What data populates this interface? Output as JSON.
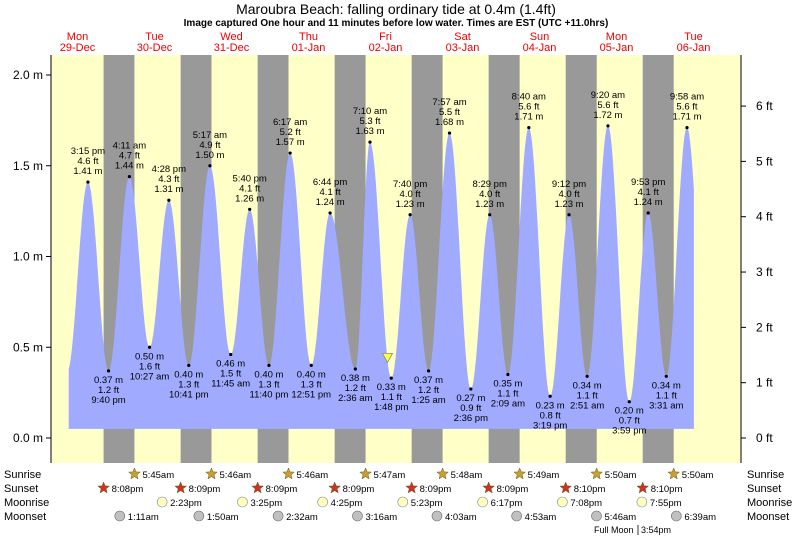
{
  "header": {
    "title": "Maroubra Beach: falling  ordinary tide at 0.4m (1.4ft)",
    "subtitle": "Image captured One hour and 11 minutes before low water. Times are EST (UTC +11.0hrs)"
  },
  "chart_data": {
    "type": "area",
    "ylim_m": [
      -0.1,
      2.12
    ],
    "y_ticks_m": [
      {
        "value": 0.0,
        "label": "0.0 m"
      },
      {
        "value": 0.5,
        "label": "0.5 m"
      },
      {
        "value": 1.0,
        "label": "1.0 m"
      },
      {
        "value": 1.5,
        "label": "1.5 m"
      },
      {
        "value": 2.0,
        "label": "2.0 m"
      }
    ],
    "y_ticks_ft": [
      {
        "value": 0,
        "label": "0 ft"
      },
      {
        "value": 1,
        "label": "1 ft"
      },
      {
        "value": 2,
        "label": "2 ft"
      },
      {
        "value": 3,
        "label": "3 ft"
      },
      {
        "value": 4,
        "label": "4 ft"
      },
      {
        "value": 5,
        "label": "5 ft"
      },
      {
        "value": 6,
        "label": "6 ft"
      }
    ],
    "days": [
      {
        "dow": "Mon",
        "date": "29-Dec"
      },
      {
        "dow": "Tue",
        "date": "30-Dec"
      },
      {
        "dow": "Wed",
        "date": "31-Dec"
      },
      {
        "dow": "Thu",
        "date": "01-Jan"
      },
      {
        "dow": "Fri",
        "date": "02-Jan"
      },
      {
        "dow": "Sat",
        "date": "03-Jan"
      },
      {
        "dow": "Sun",
        "date": "04-Jan"
      },
      {
        "dow": "Mon",
        "date": "05-Jan"
      },
      {
        "dow": "Tue",
        "date": "06-Jan"
      }
    ],
    "tides": [
      {
        "type": "high",
        "hours": 15.25,
        "time": "3:15 pm",
        "ft": "4.6 ft",
        "m": 1.41,
        "m_label": "1.41 m"
      },
      {
        "type": "low",
        "hours": 21.67,
        "time": "9:40 pm",
        "ft": "1.2 ft",
        "m": 0.37,
        "m_label": "0.37 m"
      },
      {
        "type": "high",
        "hours": 28.18,
        "time": "4:11 am",
        "ft": "4.7 ft",
        "m": 1.44,
        "m_label": "1.44 m"
      },
      {
        "type": "low",
        "hours": 34.45,
        "time": "10:27 am",
        "ft": "1.6 ft",
        "m": 0.5,
        "m_label": "0.50 m"
      },
      {
        "type": "high",
        "hours": 40.47,
        "time": "4:28 pm",
        "ft": "4.3 ft",
        "m": 1.31,
        "m_label": "1.31 m"
      },
      {
        "type": "low",
        "hours": 46.68,
        "time": "10:41 pm",
        "ft": "1.3 ft",
        "m": 0.4,
        "m_label": "0.40 m"
      },
      {
        "type": "high",
        "hours": 53.28,
        "time": "5:17 am",
        "ft": "4.9 ft",
        "m": 1.5,
        "m_label": "1.50 m"
      },
      {
        "type": "low",
        "hours": 59.75,
        "time": "11:45 am",
        "ft": "1.5 ft",
        "m": 0.46,
        "m_label": "0.46 m"
      },
      {
        "type": "high",
        "hours": 65.67,
        "time": "5:40 pm",
        "ft": "4.1 ft",
        "m": 1.26,
        "m_label": "1.26 m"
      },
      {
        "type": "low",
        "hours": 71.67,
        "time": "11:40 pm",
        "ft": "1.3 ft",
        "m": 0.4,
        "m_label": "0.40 m"
      },
      {
        "type": "high",
        "hours": 78.28,
        "time": "6:17 am",
        "ft": "5.2 ft",
        "m": 1.57,
        "m_label": "1.57 m"
      },
      {
        "type": "low",
        "hours": 84.85,
        "time": "12:51 pm",
        "ft": "1.3 ft",
        "m": 0.4,
        "m_label": "0.40 m"
      },
      {
        "type": "high",
        "hours": 90.73,
        "time": "6:44 pm",
        "ft": "4.1 ft",
        "m": 1.24,
        "m_label": "1.24 m"
      },
      {
        "type": "low",
        "hours": 98.6,
        "time": "2:36 am",
        "ft": "1.2 ft",
        "m": 0.38,
        "m_label": "0.38 m"
      },
      {
        "type": "high",
        "hours": 103.17,
        "time": "7:10 am",
        "ft": "5.3 ft",
        "m": 1.63,
        "m_label": "1.63 m"
      },
      {
        "type": "low",
        "hours": 109.8,
        "time": "1:48 pm",
        "ft": "1.1 ft",
        "m": 0.33,
        "m_label": "0.33 m"
      },
      {
        "type": "high",
        "hours": 115.67,
        "time": "7:40 pm",
        "ft": "4.0 ft",
        "m": 1.23,
        "m_label": "1.23 m"
      },
      {
        "type": "low",
        "hours": 121.42,
        "time": "1:25 am",
        "ft": "1.2 ft",
        "m": 0.37,
        "m_label": "0.37 m"
      },
      {
        "type": "high",
        "hours": 127.95,
        "time": "7:57 am",
        "ft": "5.5 ft",
        "m": 1.68,
        "m_label": "1.68 m"
      },
      {
        "type": "low",
        "hours": 134.6,
        "time": "2:36 pm",
        "ft": "0.9 ft",
        "m": 0.27,
        "m_label": "0.27 m"
      },
      {
        "type": "high",
        "hours": 140.48,
        "time": "8:29 pm",
        "ft": "4.0 ft",
        "m": 1.23,
        "m_label": "1.23 m"
      },
      {
        "type": "low",
        "hours": 146.15,
        "time": "2:09 am",
        "ft": "1.1 ft",
        "m": 0.35,
        "m_label": "0.35 m"
      },
      {
        "type": "high",
        "hours": 152.67,
        "time": "8:40 am",
        "ft": "5.6 ft",
        "m": 1.71,
        "m_label": "1.71 m"
      },
      {
        "type": "low",
        "hours": 159.32,
        "time": "3:19 pm",
        "ft": "0.8 ft",
        "m": 0.23,
        "m_label": "0.23 m"
      },
      {
        "type": "high",
        "hours": 165.2,
        "time": "9:12 pm",
        "ft": "4.0 ft",
        "m": 1.23,
        "m_label": "1.23 m"
      },
      {
        "type": "low",
        "hours": 170.85,
        "time": "2:51 am",
        "ft": "1.1 ft",
        "m": 0.34,
        "m_label": "0.34 m"
      },
      {
        "type": "high",
        "hours": 177.33,
        "time": "9:20 am",
        "ft": "5.6 ft",
        "m": 1.72,
        "m_label": "1.72 m"
      },
      {
        "type": "low",
        "hours": 183.98,
        "time": "3:59 pm",
        "ft": "0.7 ft",
        "m": 0.2,
        "m_label": "0.20 m"
      },
      {
        "type": "high",
        "hours": 189.88,
        "time": "9:53 pm",
        "ft": "4.1 ft",
        "m": 1.24,
        "m_label": "1.24 m"
      },
      {
        "type": "low",
        "hours": 195.52,
        "time": "3:31 am",
        "ft": "1.1 ft",
        "m": 0.34,
        "m_label": "0.34 m"
      },
      {
        "type": "high",
        "hours": 201.97,
        "time": "9:58 am",
        "ft": "5.6 ft",
        "m": 1.71,
        "m_label": "1.71 m"
      }
    ],
    "current": {
      "hours": 108.62,
      "m": 0.4
    },
    "sunrise": [
      "5:45am",
      "5:46am",
      "5:46am",
      "5:47am",
      "5:48am",
      "5:49am",
      "5:50am",
      "5:50am"
    ],
    "sunset": [
      "8:08pm",
      "8:09pm",
      "8:09pm",
      "8:09pm",
      "8:09pm",
      "8:09pm",
      "8:10pm",
      "8:10pm"
    ],
    "moonrise": [
      "2:23pm",
      "3:25pm",
      "4:25pm",
      "5:23pm",
      "6:17pm",
      "7:08pm",
      "7:55pm"
    ],
    "moonset": [
      "1:11am",
      "1:50am",
      "2:32am",
      "3:16am",
      "4:03am",
      "4:53am",
      "5:46am",
      "6:39am"
    ],
    "row_labels": {
      "sunrise": "Sunrise",
      "sunset": "Sunset",
      "moonrise": "Moonrise",
      "moonset": "Moonset"
    },
    "full_moon": {
      "label": "Full Moon",
      "time": "3:54pm"
    },
    "colors": {
      "day": "#ffffc8",
      "night": "#999999",
      "water": "#a0aaff",
      "date_red": "#ee0000",
      "sun_star": "#c8a032",
      "sunset_star": "#cc3322",
      "moonrise": "#ffffc0",
      "moonset": "#c0c0c0",
      "marker": "#ffff44"
    }
  }
}
